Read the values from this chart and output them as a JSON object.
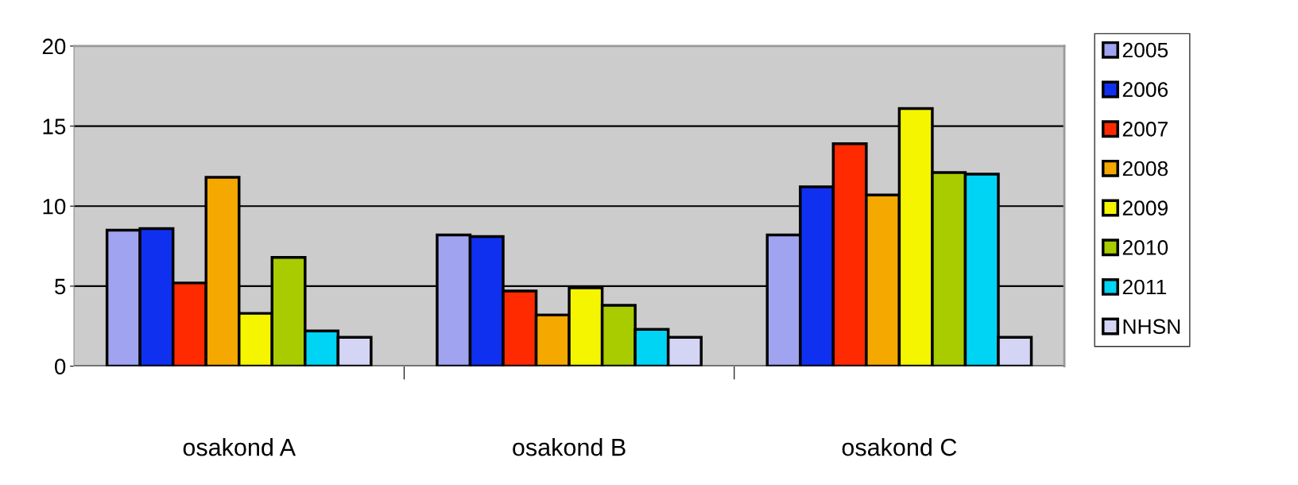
{
  "chart_data": {
    "type": "bar",
    "categories": [
      "osakond A",
      "osakond B",
      "osakond C"
    ],
    "series": [
      {
        "name": "2005",
        "color": "#a0a4f0",
        "values": [
          8.5,
          8.2,
          8.2
        ]
      },
      {
        "name": "2006",
        "color": "#1030f0",
        "values": [
          8.6,
          8.1,
          11.2
        ]
      },
      {
        "name": "2007",
        "color": "#ff2a00",
        "values": [
          5.2,
          4.7,
          13.9
        ]
      },
      {
        "name": "2008",
        "color": "#f5a800",
        "values": [
          11.8,
          3.2,
          10.7
        ]
      },
      {
        "name": "2009",
        "color": "#f5f500",
        "values": [
          3.3,
          4.9,
          16.1
        ]
      },
      {
        "name": "2010",
        "color": "#a8cc00",
        "values": [
          6.8,
          3.8,
          12.1
        ]
      },
      {
        "name": "2011",
        "color": "#00d4f5",
        "values": [
          2.2,
          2.3,
          12.0
        ]
      },
      {
        "name": "NHSN",
        "color": "#d4d4f5",
        "values": [
          1.8,
          1.8,
          1.8
        ]
      }
    ],
    "ylim": [
      0,
      20
    ],
    "yticks": [
      0,
      5,
      10,
      15,
      20
    ],
    "grid": "y",
    "legend": "right"
  }
}
